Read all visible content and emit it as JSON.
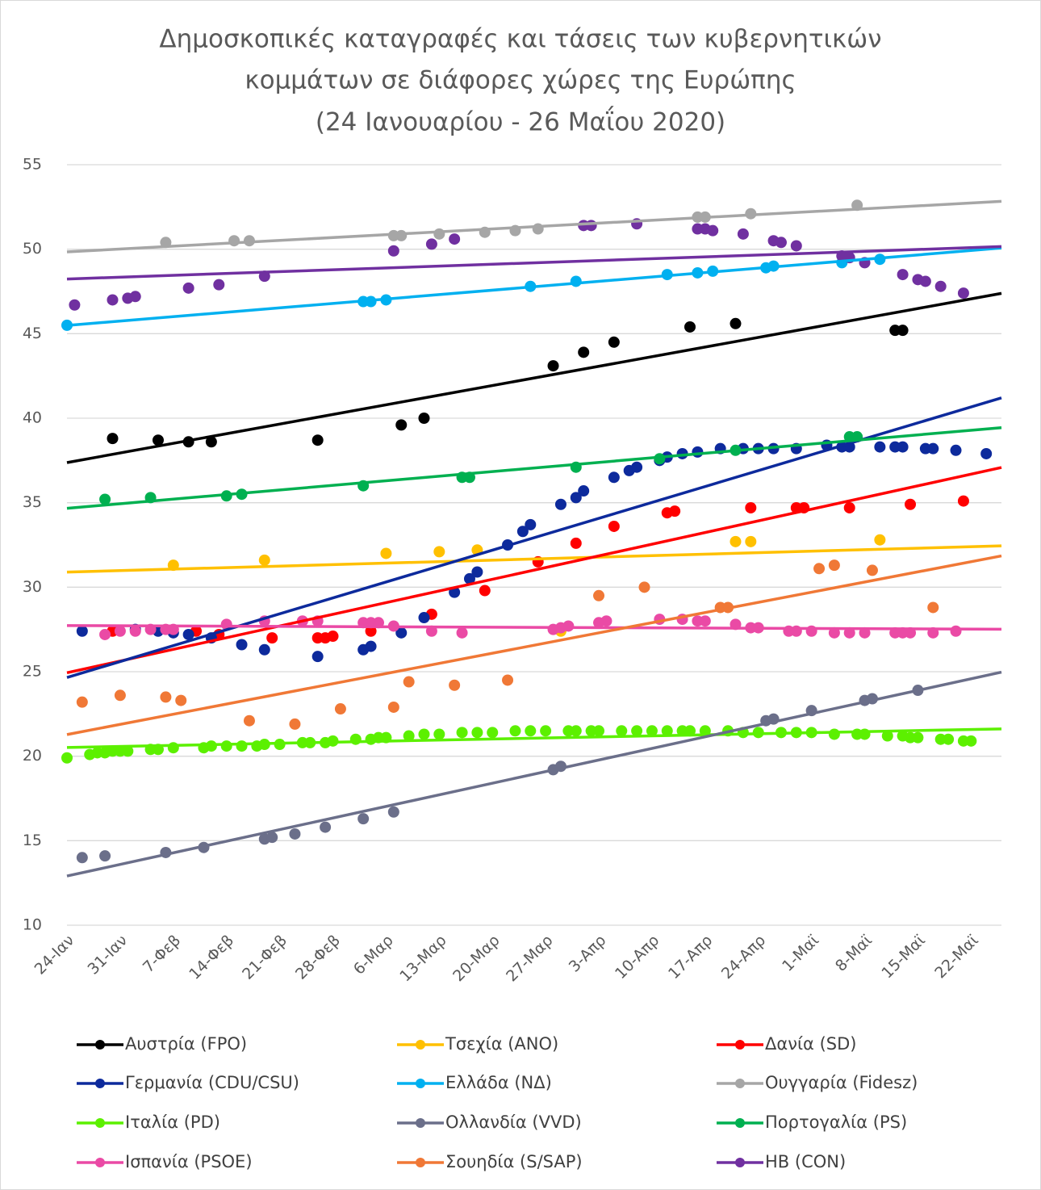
{
  "chart_data": {
    "type": "scatter",
    "trendline": "linear",
    "grid": true,
    "legend": "bottom",
    "title": [
      "Δημοσκοπικές καταγραφές και τάσεις των κυβερνητικών",
      "κομμάτων σε διάφορες χώρες της Ευρώπης",
      "(24 Ιανουαρίου - 26 Μαΐου 2020)"
    ],
    "xlim": [
      "2020-01-24",
      "2020-05-26"
    ],
    "xticks": [
      {
        "value": "2020-01-24",
        "label": "24-Ιαν"
      },
      {
        "value": "2020-01-31",
        "label": "31-Ιαν"
      },
      {
        "value": "2020-02-07",
        "label": "7-Φεβ"
      },
      {
        "value": "2020-02-14",
        "label": "14-Φεβ"
      },
      {
        "value": "2020-02-21",
        "label": "21-Φεβ"
      },
      {
        "value": "2020-02-28",
        "label": "28-Φεβ"
      },
      {
        "value": "2020-03-06",
        "label": "6-Μαρ"
      },
      {
        "value": "2020-03-13",
        "label": "13-Μαρ"
      },
      {
        "value": "2020-03-20",
        "label": "20-Μαρ"
      },
      {
        "value": "2020-03-27",
        "label": "27-Μαρ"
      },
      {
        "value": "2020-04-03",
        "label": "3-Απρ"
      },
      {
        "value": "2020-04-10",
        "label": "10-Απρ"
      },
      {
        "value": "2020-04-17",
        "label": "17-Απρ"
      },
      {
        "value": "2020-04-24",
        "label": "24-Απρ"
      },
      {
        "value": "2020-05-01",
        "label": "1-Μαϊ"
      },
      {
        "value": "2020-05-08",
        "label": "8-Μαϊ"
      },
      {
        "value": "2020-05-15",
        "label": "15-Μαϊ"
      },
      {
        "value": "2020-05-22",
        "label": "22-Μαϊ"
      }
    ],
    "ylim": [
      10,
      55
    ],
    "yticks": [
      10,
      15,
      20,
      25,
      30,
      35,
      40,
      45,
      50,
      55
    ],
    "series": [
      {
        "name": "Αυστρία (FPO)",
        "color": "#000000",
        "x": [
          "2020-01-30",
          "2020-02-05",
          "2020-02-09",
          "2020-02-12",
          "2020-02-26",
          "2020-03-08",
          "2020-03-11",
          "2020-03-28",
          "2020-04-01",
          "2020-04-05",
          "2020-04-15",
          "2020-04-21",
          "2020-05-12",
          "2020-05-13"
        ],
        "values": [
          38.8,
          38.7,
          38.6,
          38.6,
          38.7,
          39.6,
          40.0,
          43.1,
          43.9,
          44.5,
          45.4,
          45.6,
          45.2,
          45.2
        ]
      },
      {
        "name": "Τσεχία (ANO)",
        "color": "#ffc000",
        "x": [
          "2020-02-07",
          "2020-02-19",
          "2020-03-06",
          "2020-03-13",
          "2020-03-18",
          "2020-03-29",
          "2020-04-21",
          "2020-04-23",
          "2020-05-10"
        ],
        "values": [
          31.3,
          31.6,
          32.0,
          32.1,
          32.2,
          27.4,
          32.7,
          32.7,
          32.8
        ]
      },
      {
        "name": "Δανία (SD)",
        "color": "#ff0000",
        "x": [
          "2020-01-30",
          "2020-02-10",
          "2020-02-13",
          "2020-02-20",
          "2020-02-26",
          "2020-02-27",
          "2020-02-28",
          "2020-03-04",
          "2020-03-12",
          "2020-03-19",
          "2020-03-26",
          "2020-03-31",
          "2020-04-05",
          "2020-04-12",
          "2020-04-13",
          "2020-04-23",
          "2020-04-29",
          "2020-04-30",
          "2020-05-06",
          "2020-05-14",
          "2020-05-21"
        ],
        "values": [
          27.4,
          27.4,
          27.2,
          27.0,
          27.0,
          27.0,
          27.1,
          27.4,
          28.4,
          29.8,
          31.5,
          32.6,
          33.6,
          34.4,
          34.5,
          34.7,
          34.7,
          34.7,
          34.7,
          34.9,
          35.1
        ]
      },
      {
        "name": "Γερμανία (CDU/CSU)",
        "color": "#0d2a9c",
        "x": [
          "2020-01-26",
          "2020-02-02",
          "2020-02-05",
          "2020-02-07",
          "2020-02-09",
          "2020-02-12",
          "2020-02-16",
          "2020-02-19",
          "2020-02-26",
          "2020-03-03",
          "2020-03-04",
          "2020-03-08",
          "2020-03-11",
          "2020-03-15",
          "2020-03-17",
          "2020-03-18",
          "2020-03-22",
          "2020-03-24",
          "2020-03-25",
          "2020-03-29",
          "2020-03-31",
          "2020-04-01",
          "2020-04-05",
          "2020-04-07",
          "2020-04-08",
          "2020-04-11",
          "2020-04-12",
          "2020-04-14",
          "2020-04-16",
          "2020-04-19",
          "2020-04-22",
          "2020-04-24",
          "2020-04-26",
          "2020-04-29",
          "2020-05-03",
          "2020-05-05",
          "2020-05-06",
          "2020-05-10",
          "2020-05-12",
          "2020-05-13",
          "2020-05-16",
          "2020-05-17",
          "2020-05-20",
          "2020-05-24"
        ],
        "values": [
          27.4,
          27.5,
          27.4,
          27.3,
          27.2,
          27.0,
          26.6,
          26.3,
          25.9,
          26.3,
          26.5,
          27.3,
          28.2,
          29.7,
          30.5,
          30.9,
          32.5,
          33.3,
          33.7,
          34.9,
          35.3,
          35.7,
          36.5,
          36.9,
          37.1,
          37.5,
          37.7,
          37.9,
          38.0,
          38.2,
          38.2,
          38.2,
          38.2,
          38.2,
          38.4,
          38.3,
          38.3,
          38.3,
          38.3,
          38.3,
          38.2,
          38.2,
          38.1,
          37.9
        ]
      },
      {
        "name": "Ελλάδα (ΝΔ)",
        "color": "#00b0f0",
        "x": [
          "2020-01-24",
          "2020-03-03",
          "2020-03-04",
          "2020-03-06",
          "2020-03-25",
          "2020-03-31",
          "2020-04-12",
          "2020-04-16",
          "2020-04-18",
          "2020-04-25",
          "2020-04-26",
          "2020-05-05",
          "2020-05-10"
        ],
        "values": [
          45.5,
          46.9,
          46.9,
          47.0,
          47.8,
          48.1,
          48.5,
          48.6,
          48.7,
          48.9,
          49.0,
          49.2,
          49.4
        ]
      },
      {
        "name": "Ουγγαρία (Fidesz)",
        "color": "#a6a6a6",
        "x": [
          "2020-02-06",
          "2020-02-15",
          "2020-02-17",
          "2020-03-07",
          "2020-03-08",
          "2020-03-13",
          "2020-03-19",
          "2020-03-23",
          "2020-03-26",
          "2020-04-16",
          "2020-04-17",
          "2020-04-23",
          "2020-05-07"
        ],
        "values": [
          50.4,
          50.5,
          50.5,
          50.8,
          50.8,
          50.9,
          51.0,
          51.1,
          51.2,
          51.9,
          51.9,
          52.1,
          52.6
        ]
      },
      {
        "name": "Ιταλία (PD)",
        "color": "#5cf000",
        "x": [
          "2020-01-24",
          "2020-01-27",
          "2020-01-28",
          "2020-01-29",
          "2020-01-30",
          "2020-01-31",
          "2020-02-01",
          "2020-02-04",
          "2020-02-05",
          "2020-02-07",
          "2020-02-11",
          "2020-02-12",
          "2020-02-14",
          "2020-02-16",
          "2020-02-18",
          "2020-02-19",
          "2020-02-21",
          "2020-02-24",
          "2020-02-25",
          "2020-02-27",
          "2020-02-28",
          "2020-03-02",
          "2020-03-04",
          "2020-03-05",
          "2020-03-06",
          "2020-03-09",
          "2020-03-11",
          "2020-03-13",
          "2020-03-16",
          "2020-03-18",
          "2020-03-20",
          "2020-03-23",
          "2020-03-25",
          "2020-03-27",
          "2020-03-30",
          "2020-03-31",
          "2020-04-02",
          "2020-04-03",
          "2020-04-06",
          "2020-04-08",
          "2020-04-10",
          "2020-04-12",
          "2020-04-14",
          "2020-04-15",
          "2020-04-17",
          "2020-04-20",
          "2020-04-22",
          "2020-04-24",
          "2020-04-27",
          "2020-04-29",
          "2020-05-01",
          "2020-05-04",
          "2020-05-07",
          "2020-05-08",
          "2020-05-11",
          "2020-05-13",
          "2020-05-14",
          "2020-05-15",
          "2020-05-18",
          "2020-05-19",
          "2020-05-21",
          "2020-05-22"
        ],
        "values": [
          19.9,
          20.1,
          20.2,
          20.2,
          20.3,
          20.3,
          20.3,
          20.4,
          20.4,
          20.5,
          20.5,
          20.6,
          20.6,
          20.6,
          20.6,
          20.7,
          20.7,
          20.8,
          20.8,
          20.8,
          20.9,
          21.0,
          21.0,
          21.1,
          21.1,
          21.2,
          21.3,
          21.3,
          21.4,
          21.4,
          21.4,
          21.5,
          21.5,
          21.5,
          21.5,
          21.5,
          21.5,
          21.5,
          21.5,
          21.5,
          21.5,
          21.5,
          21.5,
          21.5,
          21.5,
          21.5,
          21.4,
          21.4,
          21.4,
          21.4,
          21.4,
          21.3,
          21.3,
          21.3,
          21.2,
          21.2,
          21.1,
          21.1,
          21.0,
          21.0,
          20.9,
          20.9
        ]
      },
      {
        "name": "Ολλανδία (VVD)",
        "color": "#6b6f8a",
        "x": [
          "2020-01-26",
          "2020-01-29",
          "2020-02-06",
          "2020-02-11",
          "2020-02-19",
          "2020-02-20",
          "2020-02-23",
          "2020-02-27",
          "2020-03-03",
          "2020-03-07",
          "2020-03-28",
          "2020-03-29",
          "2020-04-25",
          "2020-04-26",
          "2020-05-01",
          "2020-05-08",
          "2020-05-09",
          "2020-05-15"
        ],
        "values": [
          14.0,
          14.1,
          14.3,
          14.6,
          15.1,
          15.2,
          15.4,
          15.8,
          16.3,
          16.7,
          19.2,
          19.4,
          22.1,
          22.2,
          22.7,
          23.3,
          23.4,
          23.9
        ]
      },
      {
        "name": "Πορτογαλία (PS)",
        "color": "#00b050",
        "x": [
          "2020-01-29",
          "2020-02-04",
          "2020-02-14",
          "2020-02-16",
          "2020-03-03",
          "2020-03-16",
          "2020-03-17",
          "2020-03-31",
          "2020-04-11",
          "2020-04-21",
          "2020-05-06",
          "2020-05-07"
        ],
        "values": [
          35.2,
          35.3,
          35.4,
          35.5,
          36.0,
          36.5,
          36.5,
          37.1,
          37.6,
          38.1,
          38.9,
          38.9
        ]
      },
      {
        "name": "Ισπανία (PSOE)",
        "color": "#ea4aa5",
        "x": [
          "2020-01-29",
          "2020-01-31",
          "2020-02-02",
          "2020-02-04",
          "2020-02-06",
          "2020-02-07",
          "2020-02-14",
          "2020-02-19",
          "2020-02-24",
          "2020-02-26",
          "2020-03-03",
          "2020-03-04",
          "2020-03-05",
          "2020-03-07",
          "2020-03-12",
          "2020-03-16",
          "2020-03-28",
          "2020-03-29",
          "2020-03-30",
          "2020-04-03",
          "2020-04-04",
          "2020-04-11",
          "2020-04-14",
          "2020-04-16",
          "2020-04-17",
          "2020-04-21",
          "2020-04-23",
          "2020-04-24",
          "2020-04-28",
          "2020-04-29",
          "2020-05-01",
          "2020-05-04",
          "2020-05-06",
          "2020-05-08",
          "2020-05-12",
          "2020-05-13",
          "2020-05-14",
          "2020-05-17",
          "2020-05-20"
        ],
        "values": [
          27.2,
          27.4,
          27.4,
          27.5,
          27.5,
          27.5,
          27.8,
          28.0,
          28.0,
          28.0,
          27.9,
          27.9,
          27.9,
          27.7,
          27.4,
          27.3,
          27.5,
          27.6,
          27.7,
          27.9,
          28.0,
          28.1,
          28.1,
          28.0,
          28.0,
          27.8,
          27.6,
          27.6,
          27.4,
          27.4,
          27.4,
          27.3,
          27.3,
          27.3,
          27.3,
          27.3,
          27.3,
          27.3,
          27.4
        ]
      },
      {
        "name": "Σουηδία (S/SAP)",
        "color": "#f07836",
        "x": [
          "2020-01-26",
          "2020-01-31",
          "2020-02-06",
          "2020-02-08",
          "2020-02-17",
          "2020-02-23",
          "2020-02-29",
          "2020-03-07",
          "2020-03-09",
          "2020-03-15",
          "2020-03-22",
          "2020-04-03",
          "2020-04-09",
          "2020-04-19",
          "2020-04-20",
          "2020-05-02",
          "2020-05-04",
          "2020-05-09",
          "2020-05-17"
        ],
        "values": [
          23.2,
          23.6,
          23.5,
          23.3,
          22.1,
          21.9,
          22.8,
          22.9,
          24.4,
          24.2,
          24.5,
          29.5,
          30.0,
          28.8,
          28.8,
          31.1,
          31.3,
          31.0,
          28.8
        ]
      },
      {
        "name": "ΗΒ (CON)",
        "color": "#7030a0",
        "x": [
          "2020-01-25",
          "2020-01-30",
          "2020-02-01",
          "2020-02-02",
          "2020-02-09",
          "2020-02-13",
          "2020-02-19",
          "2020-03-07",
          "2020-03-12",
          "2020-03-15",
          "2020-04-01",
          "2020-04-02",
          "2020-04-08",
          "2020-04-16",
          "2020-04-17",
          "2020-04-18",
          "2020-04-22",
          "2020-04-26",
          "2020-04-27",
          "2020-04-29",
          "2020-05-05",
          "2020-05-06",
          "2020-05-08",
          "2020-05-13",
          "2020-05-15",
          "2020-05-16",
          "2020-05-18",
          "2020-05-21"
        ],
        "values": [
          46.7,
          47.0,
          47.1,
          47.2,
          47.7,
          47.9,
          48.4,
          49.9,
          50.3,
          50.6,
          51.4,
          51.4,
          51.5,
          51.2,
          51.2,
          51.1,
          50.9,
          50.5,
          50.4,
          50.2,
          49.6,
          49.5,
          49.2,
          48.5,
          48.2,
          48.1,
          47.8,
          47.4
        ]
      }
    ]
  }
}
